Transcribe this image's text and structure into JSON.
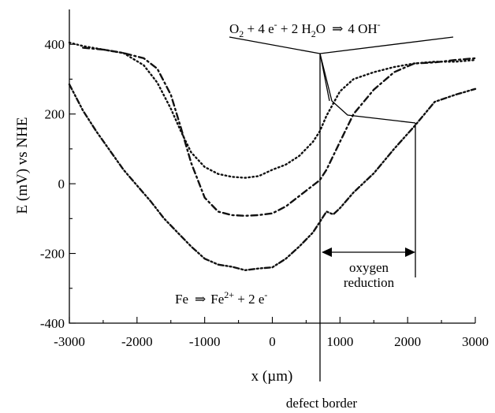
{
  "chart_data": {
    "type": "line",
    "xlabel": "x (µm)",
    "ylabel": "E (mV) vs NHE",
    "xlim": [
      -3000,
      3000
    ],
    "ylim": [
      -400,
      500
    ],
    "x_ticks": [
      -3000,
      -2000,
      -1000,
      0,
      1000,
      2000,
      3000
    ],
    "y_ticks": [
      -400,
      -200,
      0,
      200,
      400
    ],
    "grid": false,
    "series": [
      {
        "style": "dotted",
        "x": [
          -3000,
          -2800,
          -2500,
          -2200,
          -1900,
          -1700,
          -1500,
          -1350,
          -1200,
          -1000,
          -800,
          -600,
          -400,
          -200,
          0,
          200,
          400,
          600,
          700,
          800,
          1000,
          1200,
          1500,
          1800,
          2100,
          2400,
          2700,
          3000
        ],
        "y": [
          405,
          395,
          385,
          375,
          340,
          290,
          215,
          150,
          90,
          48,
          28,
          20,
          17,
          22,
          40,
          55,
          80,
          120,
          150,
          195,
          265,
          300,
          320,
          335,
          345,
          350,
          350,
          355
        ]
      },
      {
        "style": "dash-dot",
        "x": [
          -2800,
          -2500,
          -2200,
          -1900,
          -1700,
          -1500,
          -1350,
          -1200,
          -1000,
          -800,
          -600,
          -400,
          -200,
          0,
          200,
          400,
          600,
          700,
          800,
          1000,
          1200,
          1500,
          1800,
          2100,
          2400,
          2700,
          3000
        ],
        "y": [
          390,
          385,
          375,
          360,
          330,
          255,
          160,
          60,
          -40,
          -80,
          -90,
          -92,
          -90,
          -85,
          -65,
          -35,
          -5,
          10,
          40,
          120,
          200,
          270,
          320,
          345,
          348,
          355,
          360
        ]
      },
      {
        "style": "dash-dot-dot",
        "x": [
          -3000,
          -2800,
          -2600,
          -2400,
          -2200,
          -2000,
          -1800,
          -1600,
          -1400,
          -1200,
          -1000,
          -800,
          -600,
          -400,
          -200,
          0,
          200,
          400,
          600,
          700,
          800,
          900,
          1000,
          1200,
          1500,
          1800,
          2100,
          2400,
          2700,
          3000
        ],
        "y": [
          285,
          210,
          150,
          95,
          40,
          -5,
          -50,
          -100,
          -140,
          -180,
          -215,
          -232,
          -238,
          -248,
          -243,
          -240,
          -215,
          -180,
          -140,
          -110,
          -80,
          -88,
          -70,
          -25,
          30,
          100,
          165,
          235,
          255,
          272
        ]
      }
    ],
    "annotations": {
      "top_reaction": {
        "pre": "O",
        "sub_o": "2",
        "mid": " + 4 e",
        "sup_e": "-",
        "mid2": " + 2 H",
        "sub_h": "2",
        "mid3": "O",
        "arrow": "⇒",
        "post": "4 OH",
        "sup_oh": "-"
      },
      "bottom_reaction": {
        "pre": "Fe",
        "arrow": "⇒",
        "post": "Fe",
        "sup_fe": "2+",
        "post2": " + 2 e",
        "sup_e": "-"
      },
      "oxygen_reduction_line1": "oxygen",
      "oxygen_reduction_line2": "reduction",
      "defect_border": "defect border",
      "defect_border_x": 700,
      "oxygen_reduction_range": [
        700,
        2100
      ]
    }
  }
}
